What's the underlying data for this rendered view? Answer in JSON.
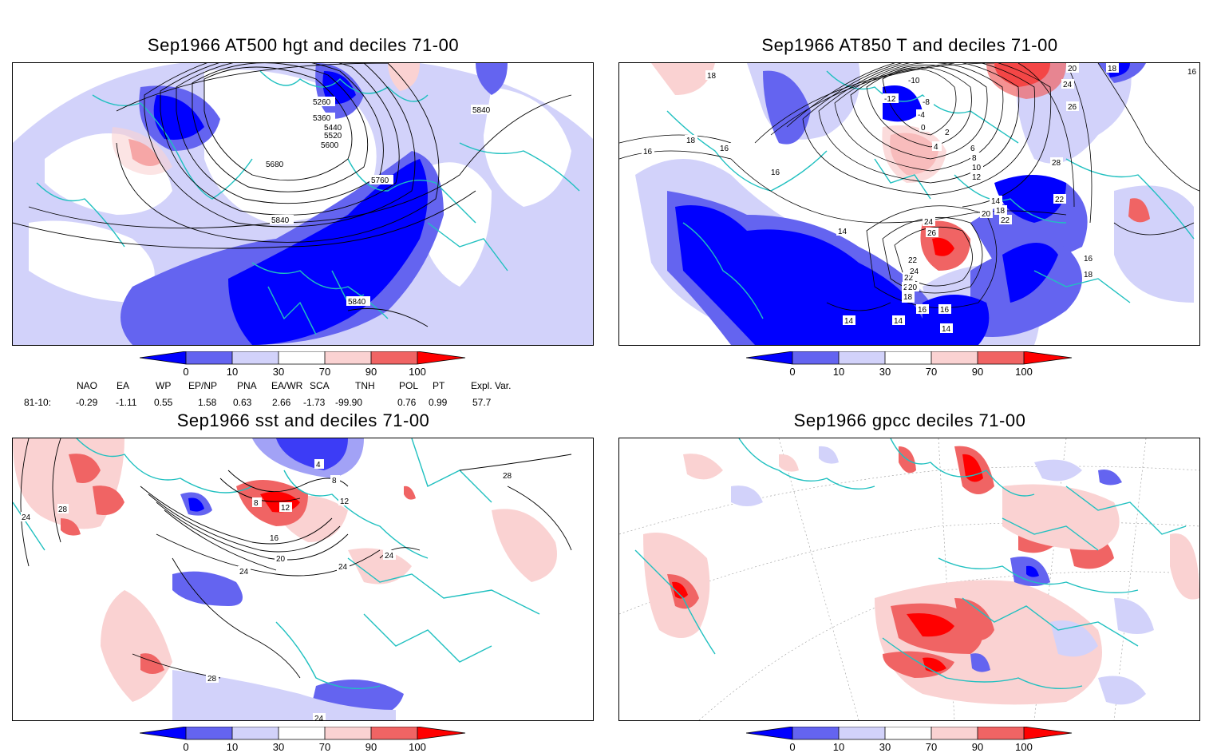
{
  "panels": [
    {
      "id": "p1",
      "title": "Sep1966 AT500 hgt and deciles 71-00"
    },
    {
      "id": "p2",
      "title": "Sep1966 AT850 T and deciles 71-00"
    },
    {
      "id": "p3",
      "title": "Sep1966 sst and deciles 71-00"
    },
    {
      "id": "p4",
      "title": "Sep1966 gpcc deciles 71-00"
    }
  ],
  "colorbar": {
    "labels": [
      "0",
      "10",
      "30",
      "70",
      "90",
      "100"
    ],
    "colors": [
      "#0000ff",
      "#6464f0",
      "#d2d2fa",
      "#ffffff",
      "#fad2d2",
      "#f06464",
      "#ff0000"
    ]
  },
  "indices": {
    "headers": [
      "NAO",
      "EA",
      "WP",
      "EP/NP",
      "PNA",
      "EA/WR",
      "SCA",
      "TNH",
      "POL",
      "PT",
      "Expl. Var."
    ],
    "row_label": "81-10:",
    "values": [
      "-0.29",
      "-1.11",
      "0.55",
      "1.58",
      "0.63",
      "2.66",
      "-1.73",
      "-99.90",
      "0.76",
      "0.99",
      "57.7"
    ]
  },
  "contour_labels": {
    "p1": [
      "5260",
      "5360",
      "5440",
      "5520",
      "5600",
      "5680",
      "5760",
      "5840",
      "5840",
      "5840"
    ],
    "p2": [
      "18",
      "18",
      "16",
      "16",
      "16",
      "14",
      "14",
      "14",
      "14",
      "16",
      "18",
      "20",
      "22",
      "24",
      "26",
      "24",
      "22",
      "20",
      "18",
      "16",
      "-10",
      "-12",
      "-8",
      "-4",
      "0",
      "2",
      "4",
      "6",
      "8",
      "10",
      "12",
      "14",
      "18",
      "20",
      "22",
      "24",
      "26",
      "28",
      "20",
      "22",
      "16",
      "18",
      "16",
      "18"
    ],
    "p3": [
      "24",
      "28",
      "28",
      "8",
      "12",
      "16",
      "20",
      "24",
      "24",
      "24",
      "4",
      "8",
      "12",
      "24",
      "28"
    ]
  }
}
